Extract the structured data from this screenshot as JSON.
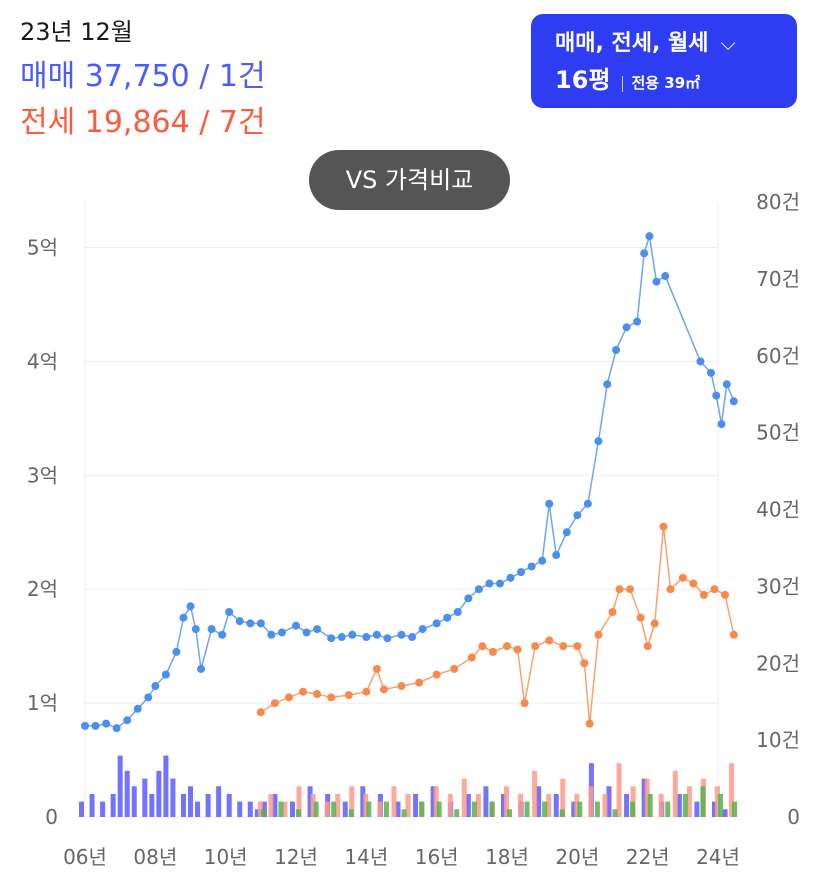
{
  "summary": {
    "period": "23년 12월",
    "sale_label": "매매 37,750 / 1건",
    "rent_label": "전세 19,864 / 7건"
  },
  "filter": {
    "deal_types": "매매, 전세, 월세",
    "size_label": "16평",
    "size_detail": "전용 39㎡"
  },
  "compare_button": "VS 가격비교",
  "colors": {
    "sale": "#4a8ff0",
    "rent": "#f78a4a",
    "sale_bar": "#5b5bff",
    "rent_bar": "#ff9a8a",
    "monthly_bar": "#55b34a",
    "filter_bg": "#2e3cf2",
    "accent_sale": "#4b5bff",
    "accent_rent": "#ff5a3c"
  },
  "chart_data": {
    "type": "line",
    "x_labels": [
      "06년",
      "08년",
      "10년",
      "12년",
      "14년",
      "16년",
      "18년",
      "20년",
      "22년",
      "24년"
    ],
    "x_range": [
      2006,
      2024
    ],
    "y_left": {
      "labels": [
        "0",
        "1억",
        "2억",
        "3억",
        "4억",
        "5억"
      ],
      "range": [
        0,
        5.4
      ],
      "unit": "억"
    },
    "y_right": {
      "labels": [
        "0",
        "10건",
        "20건",
        "30건",
        "40건",
        "50건",
        "60건",
        "70건",
        "80건"
      ],
      "range": [
        0,
        80
      ],
      "unit": "건"
    },
    "grid": true,
    "series": [
      {
        "key": "sale",
        "axis": "left",
        "points": [
          [
            2006.0,
            0.8
          ],
          [
            2006.3,
            0.8
          ],
          [
            2006.6,
            0.82
          ],
          [
            2006.9,
            0.78
          ],
          [
            2007.2,
            0.85
          ],
          [
            2007.5,
            0.95
          ],
          [
            2007.8,
            1.05
          ],
          [
            2008.0,
            1.15
          ],
          [
            2008.3,
            1.25
          ],
          [
            2008.6,
            1.45
          ],
          [
            2008.8,
            1.75
          ],
          [
            2009.0,
            1.85
          ],
          [
            2009.15,
            1.65
          ],
          [
            2009.3,
            1.3
          ],
          [
            2009.6,
            1.65
          ],
          [
            2009.9,
            1.6
          ],
          [
            2010.1,
            1.8
          ],
          [
            2010.4,
            1.72
          ],
          [
            2010.7,
            1.7
          ],
          [
            2011.0,
            1.7
          ],
          [
            2011.3,
            1.6
          ],
          [
            2011.6,
            1.62
          ],
          [
            2012.0,
            1.68
          ],
          [
            2012.3,
            1.62
          ],
          [
            2012.6,
            1.65
          ],
          [
            2013.0,
            1.57
          ],
          [
            2013.3,
            1.58
          ],
          [
            2013.6,
            1.6
          ],
          [
            2014.0,
            1.58
          ],
          [
            2014.3,
            1.6
          ],
          [
            2014.6,
            1.57
          ],
          [
            2015.0,
            1.6
          ],
          [
            2015.3,
            1.58
          ],
          [
            2015.6,
            1.65
          ],
          [
            2016.0,
            1.7
          ],
          [
            2016.3,
            1.75
          ],
          [
            2016.6,
            1.8
          ],
          [
            2016.9,
            1.92
          ],
          [
            2017.2,
            2.0
          ],
          [
            2017.5,
            2.05
          ],
          [
            2017.8,
            2.05
          ],
          [
            2018.1,
            2.1
          ],
          [
            2018.4,
            2.15
          ],
          [
            2018.7,
            2.2
          ],
          [
            2019.0,
            2.25
          ],
          [
            2019.2,
            2.75
          ],
          [
            2019.4,
            2.3
          ],
          [
            2019.7,
            2.5
          ],
          [
            2020.0,
            2.65
          ],
          [
            2020.3,
            2.75
          ],
          [
            2020.6,
            3.3
          ],
          [
            2020.85,
            3.8
          ],
          [
            2021.1,
            4.1
          ],
          [
            2021.4,
            4.3
          ],
          [
            2021.7,
            4.35
          ],
          [
            2021.9,
            4.95
          ],
          [
            2022.05,
            5.1
          ],
          [
            2022.25,
            4.7
          ],
          [
            2022.5,
            4.75
          ],
          [
            2023.5,
            4.0
          ],
          [
            2023.8,
            3.9
          ],
          [
            2023.95,
            3.7
          ],
          [
            2024.1,
            3.45
          ],
          [
            2024.25,
            3.8
          ],
          [
            2024.45,
            3.65
          ]
        ]
      },
      {
        "key": "rent",
        "axis": "left",
        "points": [
          [
            2011.0,
            0.92
          ],
          [
            2011.4,
            1.0
          ],
          [
            2011.8,
            1.05
          ],
          [
            2012.2,
            1.1
          ],
          [
            2012.6,
            1.08
          ],
          [
            2013.0,
            1.05
          ],
          [
            2013.5,
            1.07
          ],
          [
            2014.0,
            1.1
          ],
          [
            2014.3,
            1.3
          ],
          [
            2014.5,
            1.12
          ],
          [
            2015.0,
            1.15
          ],
          [
            2015.5,
            1.18
          ],
          [
            2016.0,
            1.25
          ],
          [
            2016.5,
            1.3
          ],
          [
            2017.0,
            1.4
          ],
          [
            2017.3,
            1.5
          ],
          [
            2017.6,
            1.45
          ],
          [
            2018.0,
            1.5
          ],
          [
            2018.3,
            1.47
          ],
          [
            2018.5,
            1.0
          ],
          [
            2018.8,
            1.5
          ],
          [
            2019.2,
            1.55
          ],
          [
            2019.6,
            1.5
          ],
          [
            2020.0,
            1.5
          ],
          [
            2020.2,
            1.35
          ],
          [
            2020.35,
            0.82
          ],
          [
            2020.6,
            1.6
          ],
          [
            2021.0,
            1.8
          ],
          [
            2021.2,
            2.0
          ],
          [
            2021.5,
            2.0
          ],
          [
            2021.8,
            1.75
          ],
          [
            2022.0,
            1.5
          ],
          [
            2022.2,
            1.7
          ],
          [
            2022.45,
            2.55
          ],
          [
            2022.65,
            2.0
          ],
          [
            2023.0,
            2.1
          ],
          [
            2023.3,
            2.05
          ],
          [
            2023.6,
            1.95
          ],
          [
            2023.9,
            2.0
          ],
          [
            2024.2,
            1.95
          ],
          [
            2024.45,
            1.6
          ]
        ]
      }
    ],
    "volume_bars": {
      "axis": "right",
      "sale": [
        [
          2006.0,
          2
        ],
        [
          2006.3,
          3
        ],
        [
          2006.6,
          2
        ],
        [
          2006.9,
          3
        ],
        [
          2007.1,
          8
        ],
        [
          2007.3,
          6
        ],
        [
          2007.5,
          4
        ],
        [
          2007.8,
          5
        ],
        [
          2008.0,
          3
        ],
        [
          2008.2,
          6
        ],
        [
          2008.4,
          8
        ],
        [
          2008.6,
          5
        ],
        [
          2008.9,
          3
        ],
        [
          2009.1,
          4
        ],
        [
          2009.3,
          2
        ],
        [
          2009.6,
          3
        ],
        [
          2009.9,
          4
        ],
        [
          2010.2,
          3
        ],
        [
          2010.5,
          2
        ],
        [
          2010.8,
          2
        ],
        [
          2011.0,
          1
        ],
        [
          2011.2,
          2
        ],
        [
          2011.5,
          3
        ],
        [
          2012.0,
          2
        ],
        [
          2012.5,
          4
        ],
        [
          2013.0,
          3
        ],
        [
          2013.5,
          2
        ],
        [
          2014.0,
          4
        ],
        [
          2014.5,
          3
        ],
        [
          2015.0,
          2
        ],
        [
          2015.5,
          3
        ],
        [
          2016.0,
          4
        ],
        [
          2016.5,
          2
        ],
        [
          2017.0,
          3
        ],
        [
          2017.5,
          4
        ],
        [
          2018.0,
          3
        ],
        [
          2018.5,
          2
        ],
        [
          2019.0,
          4
        ],
        [
          2019.5,
          3
        ],
        [
          2020.0,
          2
        ],
        [
          2020.5,
          7
        ],
        [
          2021.0,
          4
        ],
        [
          2021.5,
          3
        ],
        [
          2022.0,
          5
        ],
        [
          2022.5,
          2
        ],
        [
          2023.0,
          3
        ],
        [
          2023.5,
          2
        ],
        [
          2024.0,
          2
        ],
        [
          2024.3,
          1
        ]
      ],
      "rent": [
        [
          2011.0,
          2
        ],
        [
          2011.3,
          3
        ],
        [
          2011.7,
          2
        ],
        [
          2012.1,
          4
        ],
        [
          2012.5,
          3
        ],
        [
          2012.9,
          2
        ],
        [
          2013.2,
          3
        ],
        [
          2013.6,
          4
        ],
        [
          2014.0,
          3
        ],
        [
          2014.4,
          2
        ],
        [
          2014.8,
          4
        ],
        [
          2015.2,
          3
        ],
        [
          2015.6,
          2
        ],
        [
          2016.0,
          4
        ],
        [
          2016.4,
          3
        ],
        [
          2016.8,
          5
        ],
        [
          2017.2,
          3
        ],
        [
          2017.6,
          2
        ],
        [
          2018.0,
          4
        ],
        [
          2018.4,
          3
        ],
        [
          2018.8,
          6
        ],
        [
          2019.2,
          3
        ],
        [
          2019.6,
          5
        ],
        [
          2020.0,
          3
        ],
        [
          2020.4,
          4
        ],
        [
          2020.8,
          3
        ],
        [
          2021.2,
          7
        ],
        [
          2021.6,
          4
        ],
        [
          2022.0,
          5
        ],
        [
          2022.4,
          3
        ],
        [
          2022.8,
          6
        ],
        [
          2023.2,
          4
        ],
        [
          2023.6,
          5
        ],
        [
          2024.0,
          4
        ],
        [
          2024.4,
          7
        ]
      ],
      "monthly": [
        [
          2011.0,
          1
        ],
        [
          2011.5,
          2
        ],
        [
          2012.0,
          1
        ],
        [
          2012.5,
          2
        ],
        [
          2013.0,
          2
        ],
        [
          2013.5,
          1
        ],
        [
          2014.0,
          2
        ],
        [
          2014.5,
          2
        ],
        [
          2015.0,
          1
        ],
        [
          2015.5,
          2
        ],
        [
          2016.0,
          2
        ],
        [
          2016.5,
          1
        ],
        [
          2017.0,
          2
        ],
        [
          2017.5,
          2
        ],
        [
          2018.0,
          1
        ],
        [
          2018.5,
          2
        ],
        [
          2019.0,
          2
        ],
        [
          2019.5,
          1
        ],
        [
          2020.0,
          2
        ],
        [
          2020.5,
          2
        ],
        [
          2021.0,
          1
        ],
        [
          2021.5,
          2
        ],
        [
          2022.0,
          3
        ],
        [
          2022.5,
          2
        ],
        [
          2023.0,
          3
        ],
        [
          2023.5,
          4
        ],
        [
          2024.0,
          3
        ],
        [
          2024.4,
          2
        ]
      ]
    }
  }
}
